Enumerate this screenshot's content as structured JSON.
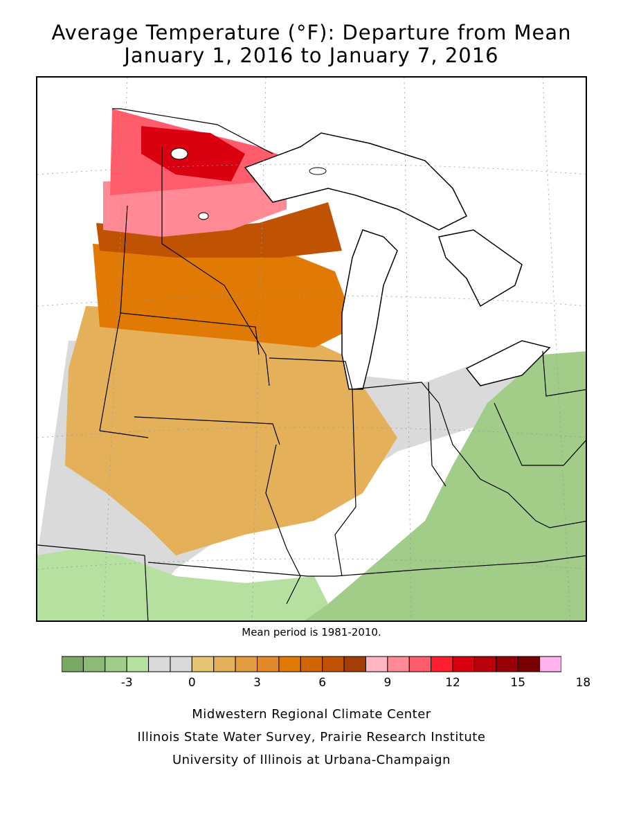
{
  "title_line1": "Average Temperature (°F): Departure from Mean",
  "title_line2": "January 1, 2016 to January 7, 2016",
  "mean_period_note": "Mean period is 1981-2010.",
  "legend": {
    "colors": [
      "#7aa865",
      "#8dbb75",
      "#a1cd88",
      "#b5e0a0",
      "#dadada",
      "#dadada",
      "#e6c573",
      "#e4b15a",
      "#e49c43",
      "#e2892b",
      "#e07a05",
      "#d16503",
      "#c05203",
      "#a43e08",
      "#ffb6c1",
      "#ff8a96",
      "#ff5d6c",
      "#ff1f2e",
      "#d90010",
      "#b80009",
      "#970006",
      "#780003",
      "#ffb3ea"
    ],
    "ticks": [
      "-3",
      "0",
      "3",
      "6",
      "9",
      "12",
      "15",
      "18"
    ]
  },
  "regions": [
    {
      "name": "far-northwest",
      "color": "#ff5d6c"
    },
    {
      "name": "arrowhead",
      "color": "#d90010"
    },
    {
      "name": "cold-edge-band",
      "color": "#ff8a96"
    },
    {
      "name": "north-band",
      "color": "#c05203"
    },
    {
      "name": "central-band",
      "color": "#e07a05"
    },
    {
      "name": "plains-band",
      "color": "#e4b15a"
    },
    {
      "name": "southeast-green",
      "color": "#a1cd88"
    },
    {
      "name": "southwest-green",
      "color": "#b5e0a0"
    },
    {
      "name": "normal-gray",
      "color": "#dadada"
    }
  ],
  "credits": {
    "line1": "Midwestern Regional Climate Center",
    "line2": "Illinois State Water Survey, Prairie Research Institute",
    "line3": "University of Illinois at Urbana-Champaign"
  }
}
